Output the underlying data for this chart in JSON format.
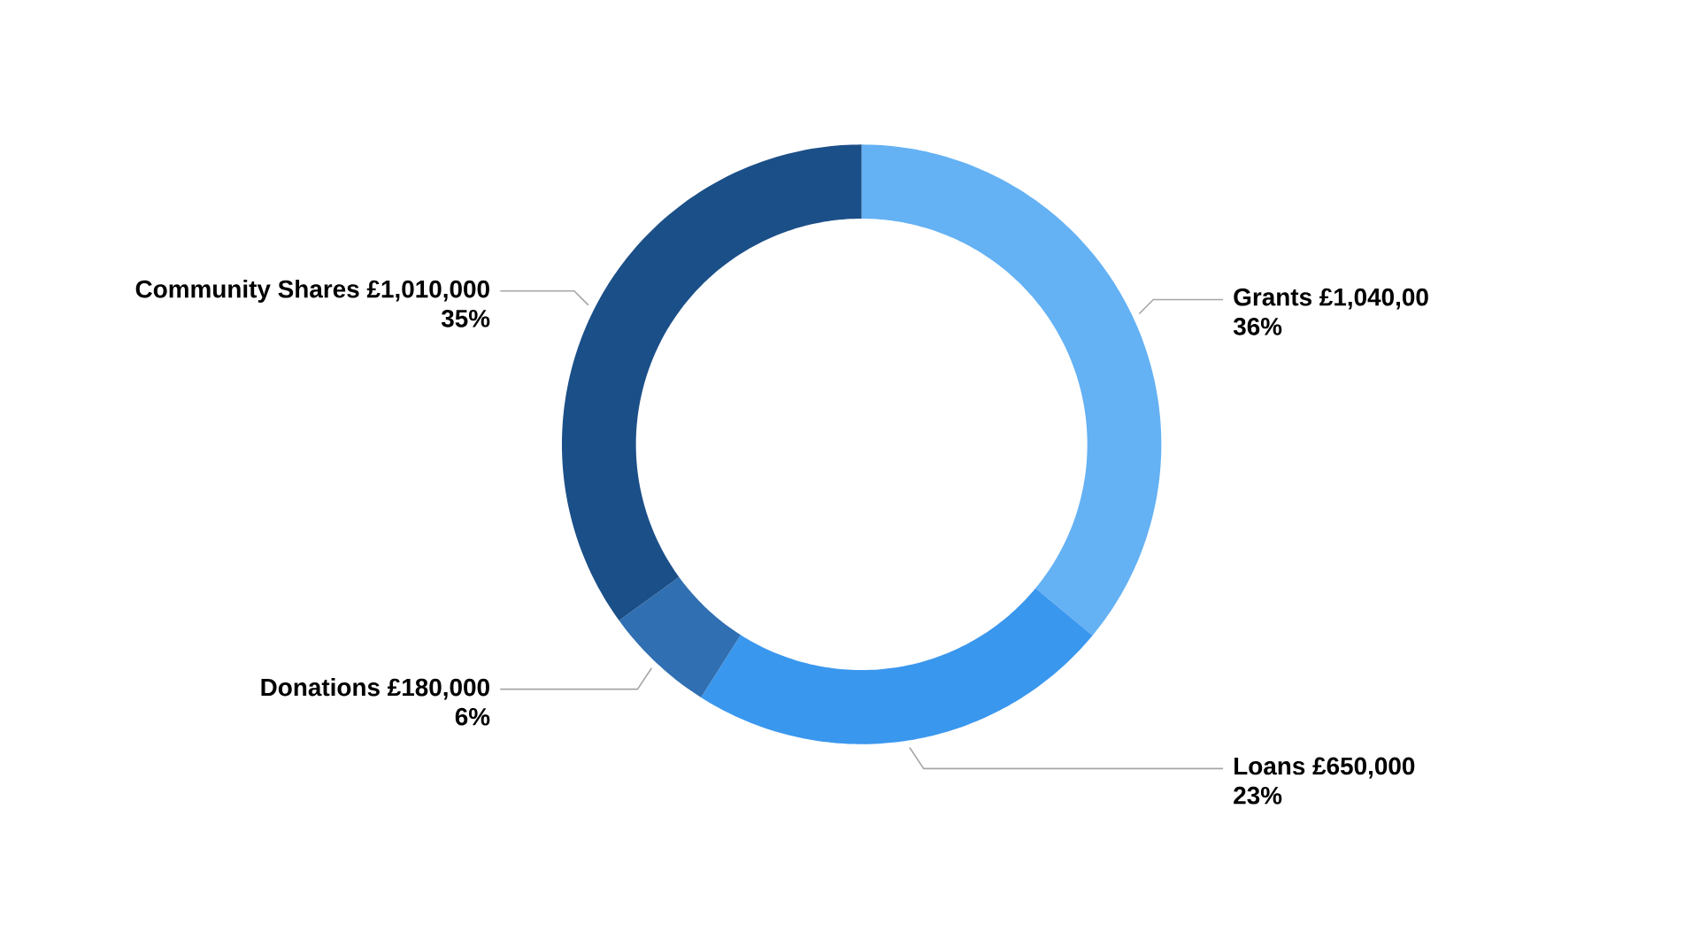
{
  "chart_data": {
    "type": "donut",
    "categories": [
      "Grants £1,040,00",
      "Loans £650,000",
      "Donations £180,000",
      "Community Shares £1,010,000"
    ],
    "values": [
      36,
      23,
      6,
      35
    ],
    "value_labels": [
      "36%",
      "23%",
      "6%",
      "35%"
    ],
    "colors": [
      "#64b1f4",
      "#3a97ee",
      "#2f6fb2",
      "#1b4f88"
    ]
  }
}
